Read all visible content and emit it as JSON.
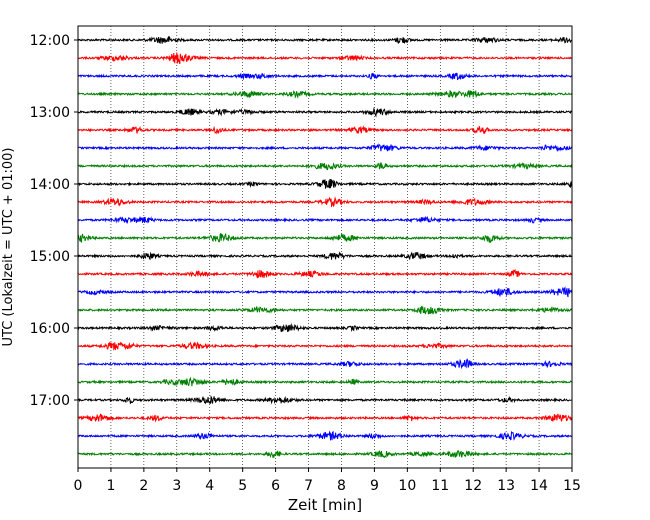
{
  "chart_data": {
    "type": "line",
    "title": "",
    "xlabel": "Zeit  [min]",
    "ylabel": "UTC (Lokalzeit = UTC + 01:00)",
    "xlim": [
      0,
      15
    ],
    "x_ticks": [
      "0",
      "1",
      "2",
      "3",
      "4",
      "5",
      "6",
      "7",
      "8",
      "9",
      "10",
      "11",
      "12",
      "13",
      "14",
      "15"
    ],
    "y_tick_labels": [
      "12:00",
      "13:00",
      "14:00",
      "15:00",
      "16:00",
      "17:00"
    ],
    "trace_start_times": [
      "12:00",
      "12:15",
      "12:30",
      "12:45",
      "13:00",
      "13:15",
      "13:30",
      "13:45",
      "14:00",
      "14:15",
      "14:30",
      "14:45",
      "15:00",
      "15:15",
      "15:30",
      "15:45",
      "16:00",
      "16:15",
      "16:30",
      "16:45",
      "17:00",
      "17:15",
      "17:30",
      "17:45"
    ],
    "trace_interval_minutes": 15,
    "trace_colors": [
      "#000000",
      "#ff0000",
      "#0000ff",
      "#008000"
    ],
    "vertical_grid": true,
    "grid_style": "dotted"
  }
}
